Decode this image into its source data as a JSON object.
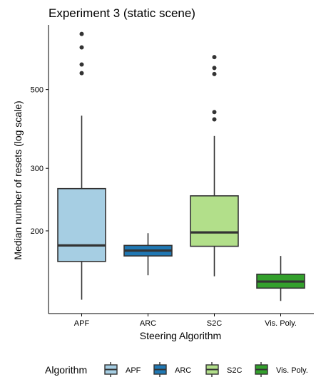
{
  "chart_data": {
    "type": "boxplot",
    "title": "Experiment 3 (static scene)",
    "xlabel": "Steering Algorithm",
    "ylabel": "Median number of resets (log scale)",
    "y_scale": "log",
    "ylim": [
      117,
      760
    ],
    "y_ticks": [
      200,
      300,
      500
    ],
    "grid": false,
    "legend": {
      "title": "Algorithm",
      "position": "bottom"
    },
    "categories": [
      "APF",
      "ARC",
      "S2C",
      "Vis. Poly."
    ],
    "series": [
      {
        "name": "APF",
        "color": "#a6cee3",
        "whisker_low": 128,
        "q1": 164,
        "median": 182,
        "q3": 263,
        "whisker_high": 422,
        "outliers": [
          717,
          657,
          588,
          556
        ]
      },
      {
        "name": "ARC",
        "color": "#1f78b4",
        "whisker_low": 150,
        "q1": 170,
        "median": 176,
        "q3": 182,
        "whisker_high": 197
      },
      {
        "name": "S2C",
        "color": "#b2df8a",
        "whisker_low": 149,
        "q1": 181,
        "median": 198,
        "q3": 251,
        "whisker_high": 370,
        "outliers": [
          617,
          575,
          553,
          432,
          412
        ]
      },
      {
        "name": "Vis. Poly.",
        "color": "#33a02c",
        "whisker_low": 127,
        "q1": 138,
        "median": 144,
        "q3": 151,
        "whisker_high": 170
      }
    ]
  }
}
